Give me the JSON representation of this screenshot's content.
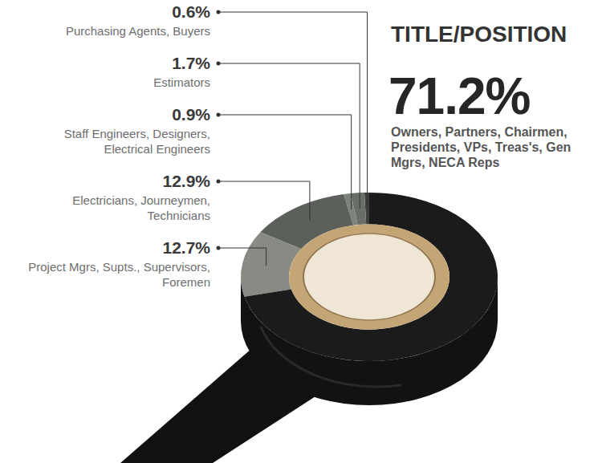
{
  "chart_data": {
    "type": "pie",
    "title": "TITLE/POSITION",
    "categories": [
      "Purchasing Agents, Buyers",
      "Estimators",
      "Staff Engineers, Designers, Electrical Engineers",
      "Electricians, Journeymen, Technicians",
      "Project Mgrs, Supts., Supervisors, Foremen",
      "Owners, Partners, Chairmen, Presidents, VPs, Treas's, Gen Mgrs, NECA Reps"
    ],
    "values": [
      0.6,
      1.7,
      0.9,
      12.9,
      12.7,
      71.2
    ],
    "value_labels": [
      "0.6%",
      "1.7%",
      "0.9%",
      "12.9%",
      "12.7%",
      "71.2%"
    ],
    "colors": [
      "#3c403c",
      "#6a6e68",
      "#7e827c",
      "#5c605a",
      "#888b84",
      "#1b1b1b"
    ],
    "data_labels": true
  }
}
